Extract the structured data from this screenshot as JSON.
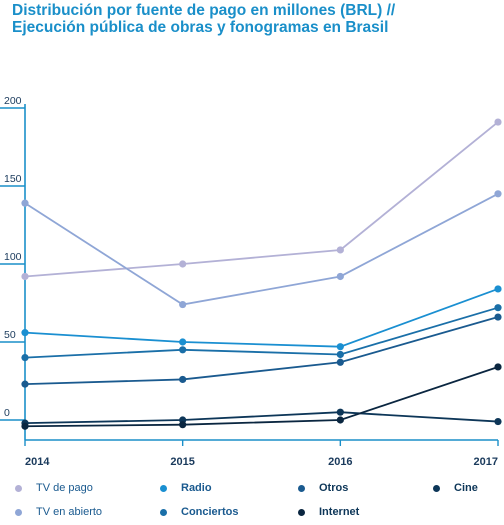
{
  "colors": {
    "title": "#1a8fc9",
    "axis": "#1a8fc9",
    "tick_text": "#1a3a5c"
  },
  "chart_data": {
    "type": "line",
    "title": "Distribución por fuente de pago en millones (BRL) // Ejecución pública de obras y fonogramas en Brasil",
    "title_lines": [
      "Distribución por fuente de pago en millones (BRL) //",
      "Ejecución pública de obras y fonogramas en Brasil"
    ],
    "xlabel": "",
    "ylabel": "",
    "x": [
      "2014",
      "2015",
      "2016",
      "2017"
    ],
    "ylim": [
      -5,
      205
    ],
    "yticks": [
      0,
      50,
      100,
      150,
      200
    ],
    "grid": false,
    "legend_position": "bottom",
    "series": [
      {
        "name": "TV de pago",
        "color": "#b3b1d6",
        "values": [
          92,
          100,
          109,
          191
        ]
      },
      {
        "name": "TV en abierto",
        "color": "#8fa6d6",
        "values": [
          139,
          74,
          92,
          145
        ]
      },
      {
        "name": "Radio",
        "color": "#1a8fd1",
        "values": [
          56,
          50,
          47,
          84
        ]
      },
      {
        "name": "Conciertos",
        "color": "#1a6fa8",
        "values": [
          40,
          45,
          42,
          72
        ]
      },
      {
        "name": "Otros",
        "color": "#1a5a8f",
        "values": [
          23,
          26,
          37,
          66
        ]
      },
      {
        "name": "Cine",
        "color": "#0d3658",
        "values": [
          -2,
          0,
          5,
          -1
        ]
      },
      {
        "name": "Internet",
        "color": "#0a2640",
        "values": [
          -4,
          -3,
          0,
          34
        ]
      }
    ]
  }
}
